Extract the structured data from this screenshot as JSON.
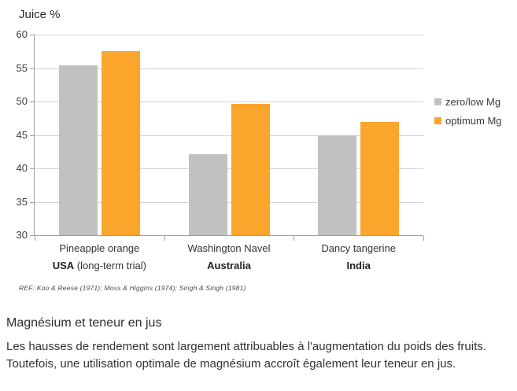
{
  "chart_data": {
    "type": "bar",
    "title": "Juice %",
    "categories": [
      "Pineapple orange",
      "Washington Navel",
      "Dancy tangerine"
    ],
    "category_sublabels": [
      {
        "bold": "USA",
        "rest": " (long-term trial)"
      },
      {
        "bold": "Australia",
        "rest": ""
      },
      {
        "bold": "India",
        "rest": ""
      }
    ],
    "series": [
      {
        "name": "zero/low Mg",
        "color": "#C1C1C1",
        "values": [
          55.4,
          42.1,
          45.0
        ]
      },
      {
        "name": "optimum Mg",
        "color": "#FAA52B",
        "values": [
          57.5,
          49.6,
          47.0
        ]
      }
    ],
    "ylabel": "Juice %",
    "xlabel": "",
    "ylim": [
      30,
      60
    ],
    "yticks": [
      30,
      35,
      40,
      45,
      50,
      55,
      60
    ],
    "grid": true,
    "legend_position": "right",
    "colors": {
      "grid": "#D4D4D4",
      "axis": "#9E9E9E",
      "tick_text": "#3F3F3F"
    }
  },
  "reference": "REF: Koo & Reese (1971); Moss & Higgins (1974); Singh & Singh (1981)",
  "caption": {
    "heading": "Magnésium et teneur en jus",
    "body": "Les hausses de rendement sont largement attribuables à l'augmentation du poids des fruits. Toutefois, une utilisation optimale de magnésium accroît également leur teneur en jus."
  }
}
